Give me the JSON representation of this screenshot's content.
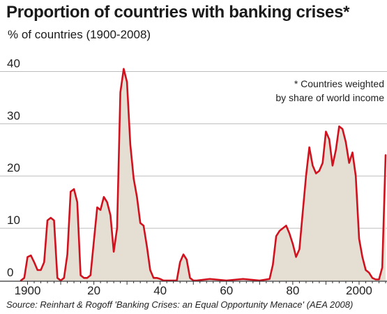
{
  "chart_data": {
    "type": "area",
    "title": "Proportion of countries with banking crises*",
    "subtitle": "% of countries (1900-2008)",
    "xlabel": "",
    "ylabel": "",
    "xlim": [
      1898,
      2008
    ],
    "ylim": [
      0,
      41
    ],
    "x_ticks": [
      "1900",
      "20",
      "40",
      "60",
      "80",
      "2000"
    ],
    "y_ticks": [
      "0",
      "10",
      "20",
      "30",
      "40"
    ],
    "grid": true,
    "annotation": [
      "* Countries weighted",
      "by share of world income"
    ],
    "source": "Source: Reinhart & Rogoff 'Banking Crises: an Equal Opportunity Menace' (AEA 2008)",
    "colors": {
      "line": "#d0121f",
      "fill": "#e4ded3",
      "grid": "#bdbdbd",
      "axis": "#333333"
    },
    "series": [
      {
        "x": [
          1898,
          1899,
          1900,
          1901,
          1902,
          1903,
          1904,
          1905,
          1906,
          1907,
          1908,
          1909,
          1910,
          1911,
          1912,
          1913,
          1914,
          1915,
          1916,
          1917,
          1918,
          1919,
          1920,
          1921,
          1922,
          1923,
          1924,
          1925,
          1926,
          1927,
          1928,
          1929,
          1930,
          1931,
          1932,
          1933,
          1934,
          1935,
          1936,
          1937,
          1938,
          1939,
          1940,
          1941,
          1942,
          1943,
          1944,
          1945,
          1946,
          1947,
          1948,
          1949,
          1950,
          1951,
          1955,
          1960,
          1965,
          1970,
          1973,
          1974,
          1975,
          1976,
          1977,
          1978,
          1979,
          1980,
          1981,
          1982,
          1983,
          1984,
          1985,
          1986,
          1987,
          1988,
          1989,
          1990,
          1991,
          1992,
          1993,
          1994,
          1995,
          1996,
          1997,
          1998,
          1999,
          2000,
          2001,
          2002,
          2003,
          2004,
          2005,
          2006,
          2007,
          2008
        ],
        "values": [
          0,
          0.5,
          4.5,
          4.8,
          3.5,
          2,
          2,
          3.5,
          11.5,
          12,
          11.5,
          0.5,
          0,
          0.5,
          5,
          17,
          17.5,
          15,
          1,
          0.5,
          0.5,
          1,
          7.5,
          14,
          13.5,
          16,
          15,
          12.5,
          5.5,
          10,
          36,
          40.5,
          38,
          26,
          19.5,
          16,
          11,
          10.5,
          6.5,
          2,
          0.5,
          0.5,
          0.3,
          0,
          0,
          0,
          0,
          0,
          3.5,
          5,
          4,
          0.5,
          0,
          0,
          0.3,
          0,
          0.3,
          0,
          0.3,
          3,
          8.5,
          9.5,
          10,
          10.5,
          9,
          7,
          4.5,
          6,
          13,
          20,
          25.5,
          22,
          20.5,
          21,
          22.5,
          28.5,
          27,
          22,
          25,
          29.5,
          29,
          26.5,
          22.5,
          24.5,
          20,
          8,
          4.5,
          2,
          1.5,
          0.5,
          0.2,
          0.2,
          2.5,
          24
        ]
      }
    ]
  }
}
